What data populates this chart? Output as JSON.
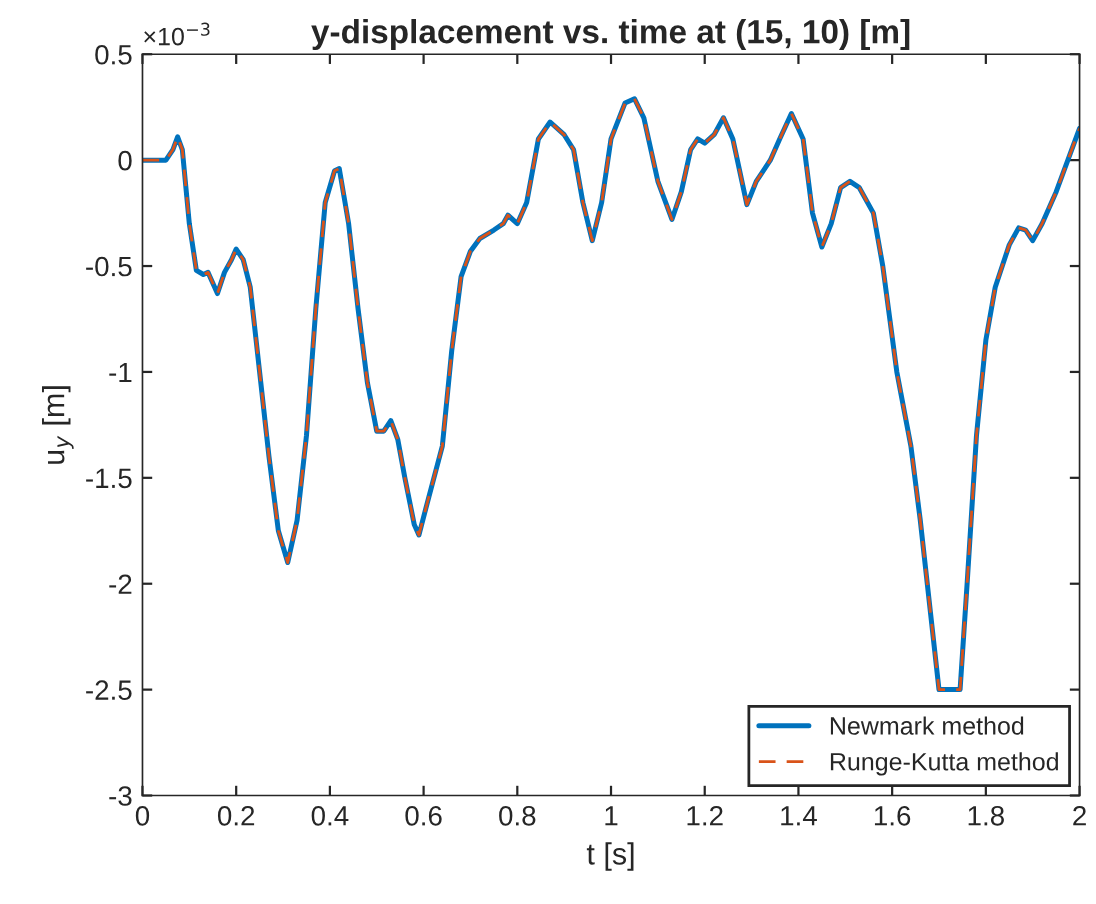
{
  "chart_data": {
    "type": "line",
    "title": "y-displacement vs. time at (15, 10) [m]",
    "xlabel": "t [s]",
    "ylabel": "u$_{y}$ [m]",
    "annotations": [
      "×10$^{−3}$"
    ],
    "x": [
      0,
      0.05,
      0.065,
      0.075,
      0.085,
      0.1,
      0.115,
      0.13,
      0.14,
      0.16,
      0.175,
      0.19,
      0.2,
      0.215,
      0.23,
      0.25,
      0.27,
      0.29,
      0.31,
      0.33,
      0.35,
      0.37,
      0.39,
      0.41,
      0.42,
      0.44,
      0.46,
      0.48,
      0.5,
      0.515,
      0.53,
      0.545,
      0.56,
      0.58,
      0.59,
      0.61,
      0.64,
      0.66,
      0.68,
      0.7,
      0.72,
      0.75,
      0.77,
      0.78,
      0.8,
      0.82,
      0.845,
      0.87,
      0.9,
      0.92,
      0.94,
      0.96,
      0.98,
      1.0,
      1.03,
      1.05,
      1.07,
      1.1,
      1.13,
      1.15,
      1.17,
      1.185,
      1.2,
      1.22,
      1.24,
      1.26,
      1.29,
      1.31,
      1.34,
      1.36,
      1.385,
      1.41,
      1.43,
      1.45,
      1.47,
      1.49,
      1.51,
      1.53,
      1.56,
      1.58,
      1.61,
      1.64,
      1.66,
      1.68,
      1.7,
      1.745,
      1.76,
      1.78,
      1.8,
      1.82,
      1.85,
      1.87,
      1.885,
      1.9,
      1.92,
      1.95,
      1.975,
      2.0
    ],
    "series": [
      {
        "name": "Newmark method",
        "color": "#0072bd",
        "line_style": "solid",
        "values": [
          0,
          0,
          0.05,
          0.11,
          0.05,
          -0.3,
          -0.52,
          -0.54,
          -0.53,
          -0.63,
          -0.53,
          -0.47,
          -0.42,
          -0.47,
          -0.6,
          -1.0,
          -1.4,
          -1.75,
          -1.9,
          -1.7,
          -1.3,
          -0.7,
          -0.2,
          -0.05,
          -0.04,
          -0.3,
          -0.7,
          -1.05,
          -1.28,
          -1.28,
          -1.23,
          -1.32,
          -1.5,
          -1.72,
          -1.77,
          -1.6,
          -1.35,
          -0.9,
          -0.55,
          -0.43,
          -0.37,
          -0.33,
          -0.3,
          -0.26,
          -0.3,
          -0.2,
          0.1,
          0.18,
          0.12,
          0.05,
          -0.2,
          -0.38,
          -0.2,
          0.1,
          0.27,
          0.29,
          0.2,
          -0.1,
          -0.28,
          -0.15,
          0.05,
          0.1,
          0.08,
          0.12,
          0.2,
          0.1,
          -0.21,
          -0.1,
          0.0,
          0.1,
          0.22,
          0.1,
          -0.25,
          -0.41,
          -0.3,
          -0.13,
          -0.1,
          -0.13,
          -0.25,
          -0.5,
          -1.0,
          -1.35,
          -1.7,
          -2.1,
          -2.5,
          -2.5,
          -2.0,
          -1.3,
          -0.85,
          -0.6,
          -0.4,
          -0.32,
          -0.33,
          -0.38,
          -0.3,
          -0.15,
          0.0,
          0.15
        ]
      },
      {
        "name": "Runge-Kutta method",
        "color": "#d95319",
        "line_style": "dashed",
        "values": [
          0,
          0,
          0.05,
          0.11,
          0.05,
          -0.3,
          -0.52,
          -0.54,
          -0.53,
          -0.63,
          -0.53,
          -0.47,
          -0.42,
          -0.47,
          -0.6,
          -1.0,
          -1.4,
          -1.75,
          -1.9,
          -1.7,
          -1.3,
          -0.7,
          -0.2,
          -0.05,
          -0.04,
          -0.3,
          -0.7,
          -1.05,
          -1.28,
          -1.28,
          -1.23,
          -1.32,
          -1.5,
          -1.72,
          -1.77,
          -1.6,
          -1.35,
          -0.9,
          -0.55,
          -0.43,
          -0.37,
          -0.33,
          -0.3,
          -0.26,
          -0.3,
          -0.2,
          0.1,
          0.18,
          0.12,
          0.05,
          -0.2,
          -0.38,
          -0.2,
          0.1,
          0.27,
          0.29,
          0.2,
          -0.1,
          -0.28,
          -0.15,
          0.05,
          0.1,
          0.08,
          0.12,
          0.2,
          0.1,
          -0.21,
          -0.1,
          0.0,
          0.1,
          0.22,
          0.1,
          -0.25,
          -0.41,
          -0.3,
          -0.13,
          -0.1,
          -0.13,
          -0.25,
          -0.5,
          -1.0,
          -1.35,
          -1.7,
          -2.1,
          -2.5,
          -2.5,
          -2.0,
          -1.3,
          -0.85,
          -0.6,
          -0.4,
          -0.32,
          -0.33,
          -0.38,
          -0.3,
          -0.15,
          0.0,
          0.15
        ]
      }
    ],
    "xlim": [
      0,
      2
    ],
    "xticks": [
      0,
      0.2,
      0.4,
      0.6,
      0.8,
      1,
      1.2,
      1.4,
      1.6,
      1.8,
      2
    ],
    "ylim": [
      -3,
      0.5
    ],
    "yticks": [
      -3,
      -2.5,
      -2,
      -1.5,
      -1,
      -0.5,
      0,
      0.5
    ],
    "grid": false,
    "legend": "bottom right",
    "marker": "none"
  }
}
